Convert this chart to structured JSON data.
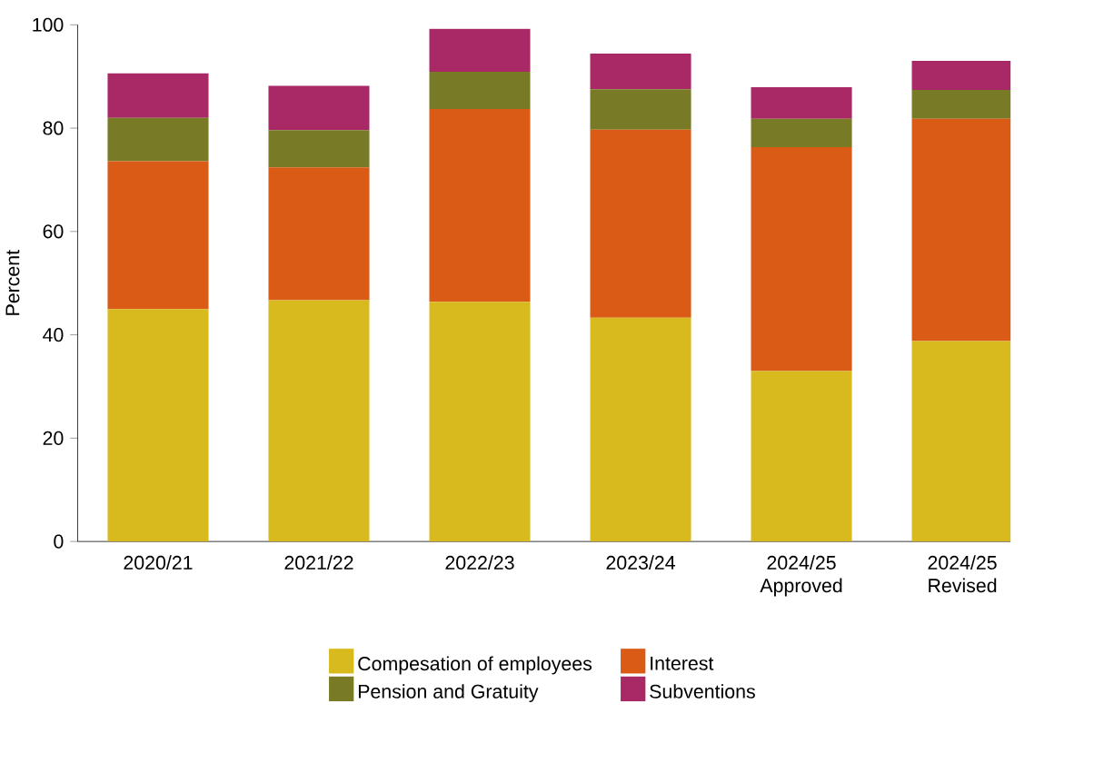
{
  "chart_data": {
    "type": "bar",
    "stacked": true,
    "ylabel": "Percent",
    "categories": [
      "2020/21",
      "2021/22",
      "2022/23",
      "2023/24",
      "2024/25 Approved",
      "2024/25 Revised"
    ],
    "series": [
      {
        "name": "Compesation of employees",
        "color": "#d8ba1e",
        "values": [
          45.0,
          46.7,
          46.4,
          43.3,
          33.0,
          38.8
        ]
      },
      {
        "name": "Interest",
        "color": "#d95b15",
        "values": [
          28.6,
          25.7,
          37.3,
          36.4,
          43.3,
          43.0
        ]
      },
      {
        "name": "Pension and Gratuity",
        "color": "#787a25",
        "values": [
          8.4,
          7.2,
          7.2,
          7.8,
          5.5,
          5.6
        ]
      },
      {
        "name": "Subventions",
        "color": "#a92866",
        "values": [
          8.6,
          8.6,
          8.3,
          6.9,
          6.1,
          5.6
        ]
      }
    ],
    "ylim": [
      0,
      100
    ],
    "yticks": [
      0,
      20,
      40,
      60,
      80,
      100
    ],
    "grid": false,
    "legend": "bottom"
  }
}
